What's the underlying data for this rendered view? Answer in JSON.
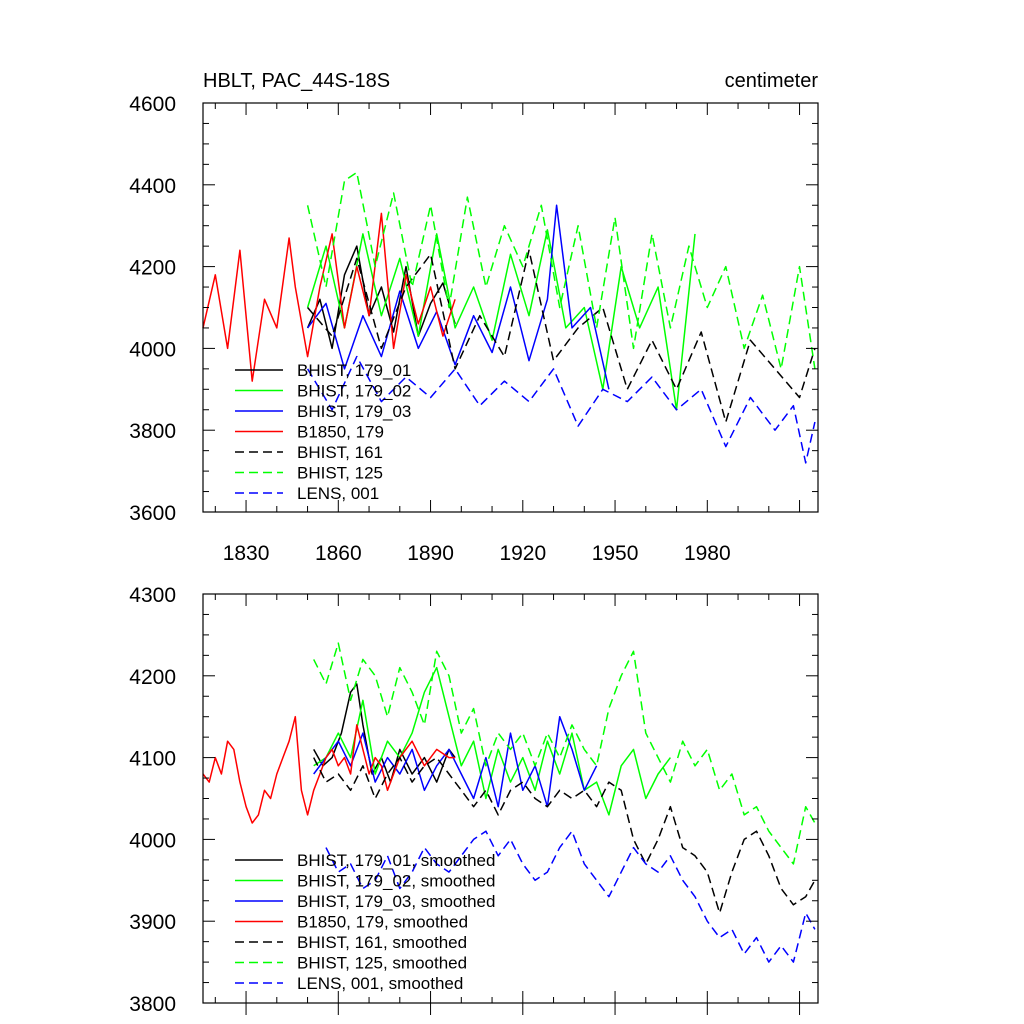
{
  "chart_data": [
    {
      "type": "line",
      "title": "HBLT, PAC_44S-18S",
      "units": "centimeter",
      "xlim": [
        1816,
        2016
      ],
      "ylim": [
        3600,
        4600
      ],
      "x_ticks": [
        "1830",
        "1860",
        "1890",
        "1920",
        "1950",
        "1980"
      ],
      "y_ticks": [
        "3600",
        "3800",
        "4000",
        "4200",
        "4400",
        "4600"
      ],
      "series": [
        {
          "name": "BHIST, 179_01",
          "color": "#000000",
          "dash": "solid",
          "x": [
            1850,
            1854,
            1858,
            1862,
            1866,
            1870,
            1874,
            1878,
            1882,
            1886,
            1890,
            1894,
            1898
          ],
          "values": [
            4050,
            4120,
            4000,
            4180,
            4250,
            4080,
            4150,
            4040,
            4200,
            4030,
            4110,
            4160,
            4060
          ]
        },
        {
          "name": "BHIST, 179_02",
          "color": "#00ff00",
          "dash": "solid",
          "x": [
            1850,
            1856,
            1862,
            1868,
            1874,
            1880,
            1886,
            1892,
            1898,
            1904,
            1910,
            1916,
            1922,
            1928,
            1934,
            1940,
            1946,
            1952,
            1958,
            1964,
            1970,
            1976
          ],
          "values": [
            4100,
            4250,
            4050,
            4280,
            4080,
            4220,
            4030,
            4280,
            4050,
            4150,
            4020,
            4230,
            4080,
            4290,
            4050,
            4100,
            3900,
            4200,
            4050,
            4150,
            3850,
            4280
          ]
        },
        {
          "name": "BHIST, 179_03",
          "color": "#0000ff",
          "dash": "solid",
          "x": [
            1850,
            1856,
            1862,
            1868,
            1874,
            1880,
            1886,
            1892,
            1898,
            1904,
            1910,
            1916,
            1922,
            1928,
            1931,
            1936,
            1942,
            1948
          ],
          "values": [
            4050,
            4110,
            3950,
            4080,
            3980,
            4140,
            4000,
            4090,
            3960,
            4080,
            3990,
            4150,
            3970,
            4120,
            4350,
            4050,
            4100,
            3900
          ]
        },
        {
          "name": "B1850, 179",
          "color": "#ff0000",
          "dash": "solid",
          "x": [
            1816,
            1820,
            1824,
            1828,
            1832,
            1836,
            1840,
            1844,
            1846,
            1850,
            1854,
            1858,
            1862,
            1866,
            1870,
            1874,
            1878,
            1882,
            1886,
            1890,
            1894,
            1898
          ],
          "values": [
            4050,
            4180,
            4000,
            4240,
            3920,
            4120,
            4050,
            4270,
            4150,
            3980,
            4150,
            4280,
            4050,
            4200,
            4080,
            4330,
            4000,
            4180,
            4060,
            4150,
            4030,
            4120
          ]
        },
        {
          "name": "BHIST, 161",
          "color": "#000000",
          "dash": "dashed",
          "x": [
            1850,
            1858,
            1866,
            1874,
            1882,
            1890,
            1898,
            1906,
            1914,
            1922,
            1930,
            1938,
            1946,
            1954,
            1962,
            1970,
            1978,
            1986,
            1994,
            2002,
            2010,
            2015
          ],
          "values": [
            4100,
            4030,
            4220,
            4000,
            4150,
            4230,
            3950,
            4080,
            3980,
            4240,
            3970,
            4050,
            4100,
            3900,
            4020,
            3900,
            4040,
            3820,
            4020,
            3950,
            3880,
            4000
          ]
        },
        {
          "name": "BHIST, 125",
          "color": "#00ff00",
          "dash": "dashed",
          "x": [
            1850,
            1856,
            1862,
            1866,
            1872,
            1878,
            1884,
            1890,
            1896,
            1902,
            1908,
            1914,
            1920,
            1926,
            1932,
            1938,
            1944,
            1950,
            1956,
            1962,
            1968,
            1974,
            1980,
            1986,
            1992,
            1998,
            2004,
            2010,
            2015
          ],
          "values": [
            4350,
            4150,
            4410,
            4430,
            4200,
            4380,
            4150,
            4350,
            4100,
            4370,
            4150,
            4300,
            4200,
            4350,
            4100,
            4300,
            4050,
            4320,
            4000,
            4280,
            4050,
            4250,
            4100,
            4200,
            4000,
            4130,
            3950,
            4200,
            3950
          ]
        },
        {
          "name": "LENS, 001",
          "color": "#0000ff",
          "dash": "dashed",
          "x": [
            1850,
            1858,
            1866,
            1874,
            1882,
            1890,
            1898,
            1906,
            1914,
            1922,
            1930,
            1938,
            1946,
            1954,
            1962,
            1970,
            1978,
            1986,
            1994,
            2002,
            2008,
            2012,
            2015
          ],
          "values": [
            3950,
            3850,
            3980,
            3870,
            3930,
            3880,
            3950,
            3860,
            3920,
            3870,
            3950,
            3810,
            3900,
            3870,
            3930,
            3850,
            3900,
            3760,
            3880,
            3800,
            3860,
            3720,
            3820
          ]
        }
      ],
      "legend": [
        "BHIST, 179_01",
        "BHIST, 179_02",
        "BHIST, 179_03",
        "B1850, 179",
        "BHIST, 161",
        "BHIST, 125",
        "LENS, 001"
      ]
    },
    {
      "type": "line",
      "title": "",
      "xlim": [
        1816,
        2016
      ],
      "ylim": [
        3800,
        4300
      ],
      "x_ticks": [],
      "y_ticks": [
        "3800",
        "3900",
        "4000",
        "4100",
        "4200",
        "4300"
      ],
      "series": [
        {
          "name": "BHIST, 179_01, smoothed",
          "color": "#000000",
          "dash": "solid",
          "x": [
            1852,
            1855,
            1858,
            1861,
            1864,
            1866,
            1868,
            1871,
            1874,
            1877,
            1880,
            1884,
            1888,
            1892,
            1896,
            1898
          ],
          "values": [
            4110,
            4090,
            4100,
            4130,
            4180,
            4190,
            4140,
            4080,
            4100,
            4070,
            4110,
            4080,
            4100,
            4070,
            4110,
            4100
          ]
        },
        {
          "name": "BHIST, 179_02, smoothed",
          "color": "#00ff00",
          "dash": "solid",
          "x": [
            1852,
            1856,
            1860,
            1864,
            1868,
            1872,
            1876,
            1880,
            1884,
            1888,
            1892,
            1896,
            1900,
            1904,
            1908,
            1912,
            1916,
            1920,
            1924,
            1928,
            1932,
            1936,
            1940,
            1944,
            1948,
            1952,
            1956,
            1960,
            1964,
            1968
          ],
          "values": [
            4090,
            4100,
            4130,
            4100,
            4170,
            4080,
            4120,
            4100,
            4130,
            4180,
            4210,
            4150,
            4090,
            4120,
            4050,
            4110,
            4070,
            4100,
            4060,
            4120,
            4080,
            4130,
            4060,
            4070,
            4030,
            4090,
            4110,
            4050,
            4080,
            4100
          ]
        },
        {
          "name": "BHIST, 179_03, smoothed",
          "color": "#0000ff",
          "dash": "solid",
          "x": [
            1852,
            1856,
            1860,
            1864,
            1868,
            1872,
            1876,
            1880,
            1884,
            1888,
            1892,
            1896,
            1900,
            1904,
            1908,
            1912,
            1916,
            1920,
            1924,
            1928,
            1932,
            1936,
            1940,
            1944
          ],
          "values": [
            4080,
            4100,
            4120,
            4090,
            4130,
            4070,
            4100,
            4080,
            4110,
            4060,
            4090,
            4110,
            4080,
            4050,
            4100,
            4040,
            4130,
            4060,
            4090,
            4040,
            4150,
            4110,
            4060,
            4090
          ]
        },
        {
          "name": "B1850, 179, smoothed",
          "color": "#ff0000",
          "dash": "solid",
          "x": [
            1816,
            1818,
            1820,
            1822,
            1824,
            1826,
            1828,
            1830,
            1832,
            1834,
            1836,
            1838,
            1840,
            1842,
            1844,
            1846,
            1848,
            1850,
            1852,
            1854,
            1856,
            1858,
            1860,
            1862,
            1864,
            1866,
            1868,
            1870,
            1872,
            1874,
            1876,
            1878,
            1880,
            1884,
            1888,
            1892,
            1896,
            1898
          ],
          "values": [
            4080,
            4070,
            4100,
            4080,
            4120,
            4110,
            4070,
            4040,
            4020,
            4030,
            4060,
            4050,
            4080,
            4100,
            4120,
            4150,
            4060,
            4030,
            4060,
            4080,
            4100,
            4110,
            4090,
            4100,
            4080,
            4140,
            4110,
            4080,
            4100,
            4090,
            4060,
            4080,
            4100,
            4120,
            4090,
            4110,
            4100,
            4100
          ]
        },
        {
          "name": "BHIST, 161, smoothed",
          "color": "#000000",
          "dash": "dashed",
          "x": [
            1852,
            1856,
            1860,
            1864,
            1868,
            1872,
            1876,
            1880,
            1884,
            1888,
            1892,
            1896,
            1900,
            1904,
            1908,
            1912,
            1916,
            1920,
            1924,
            1928,
            1932,
            1936,
            1940,
            1944,
            1948,
            1952,
            1956,
            1960,
            1964,
            1968,
            1972,
            1976,
            1980,
            1984,
            1988,
            1992,
            1996,
            2000,
            2004,
            2008,
            2012,
            2015
          ],
          "values": [
            4100,
            4070,
            4080,
            4060,
            4090,
            4050,
            4080,
            4100,
            4070,
            4090,
            4100,
            4080,
            4060,
            4040,
            4060,
            4030,
            4060,
            4070,
            4050,
            4040,
            4060,
            4050,
            4060,
            4040,
            4070,
            4060,
            4000,
            3970,
            4000,
            4040,
            3990,
            3980,
            3960,
            3910,
            3960,
            4000,
            4010,
            3980,
            3940,
            3920,
            3930,
            3950
          ]
        },
        {
          "name": "BHIST, 125, smoothed",
          "color": "#00ff00",
          "dash": "dashed",
          "x": [
            1852,
            1856,
            1860,
            1864,
            1868,
            1872,
            1876,
            1880,
            1884,
            1888,
            1892,
            1896,
            1900,
            1904,
            1908,
            1912,
            1916,
            1920,
            1924,
            1928,
            1932,
            1936,
            1940,
            1944,
            1948,
            1952,
            1956,
            1960,
            1964,
            1968,
            1972,
            1976,
            1980,
            1984,
            1988,
            1992,
            1996,
            2000,
            2004,
            2008,
            2012,
            2015
          ],
          "values": [
            4220,
            4190,
            4240,
            4170,
            4220,
            4200,
            4150,
            4210,
            4180,
            4140,
            4230,
            4200,
            4130,
            4160,
            4090,
            4130,
            4110,
            4130,
            4090,
            4130,
            4100,
            4140,
            4110,
            4090,
            4160,
            4200,
            4230,
            4130,
            4100,
            4070,
            4120,
            4090,
            4110,
            4060,
            4080,
            4030,
            4040,
            4010,
            3990,
            3970,
            4040,
            4020
          ]
        },
        {
          "name": "LENS, 001, smoothed",
          "color": "#0000ff",
          "dash": "dashed",
          "x": [
            1856,
            1860,
            1864,
            1868,
            1872,
            1876,
            1880,
            1884,
            1888,
            1892,
            1896,
            1900,
            1904,
            1908,
            1912,
            1916,
            1920,
            1924,
            1928,
            1932,
            1936,
            1940,
            1944,
            1948,
            1952,
            1956,
            1960,
            1964,
            1968,
            1972,
            1976,
            1980,
            1984,
            1988,
            1992,
            1996,
            2000,
            2004,
            2008,
            2012,
            2015
          ],
          "values": [
            3990,
            3960,
            3970,
            3940,
            3950,
            3980,
            3940,
            3960,
            3990,
            3970,
            3960,
            3980,
            4000,
            4010,
            3980,
            4000,
            3970,
            3950,
            3960,
            3990,
            4010,
            3970,
            3950,
            3930,
            3960,
            3990,
            3970,
            3960,
            3980,
            3950,
            3930,
            3900,
            3880,
            3890,
            3860,
            3880,
            3850,
            3870,
            3850,
            3910,
            3890
          ]
        }
      ],
      "legend": [
        "BHIST, 179_01, smoothed",
        "BHIST, 179_02, smoothed",
        "BHIST, 179_03, smoothed",
        "B1850, 179, smoothed",
        "BHIST, 161, smoothed",
        "BHIST, 125, smoothed",
        "LENS, 001, smoothed"
      ]
    }
  ]
}
